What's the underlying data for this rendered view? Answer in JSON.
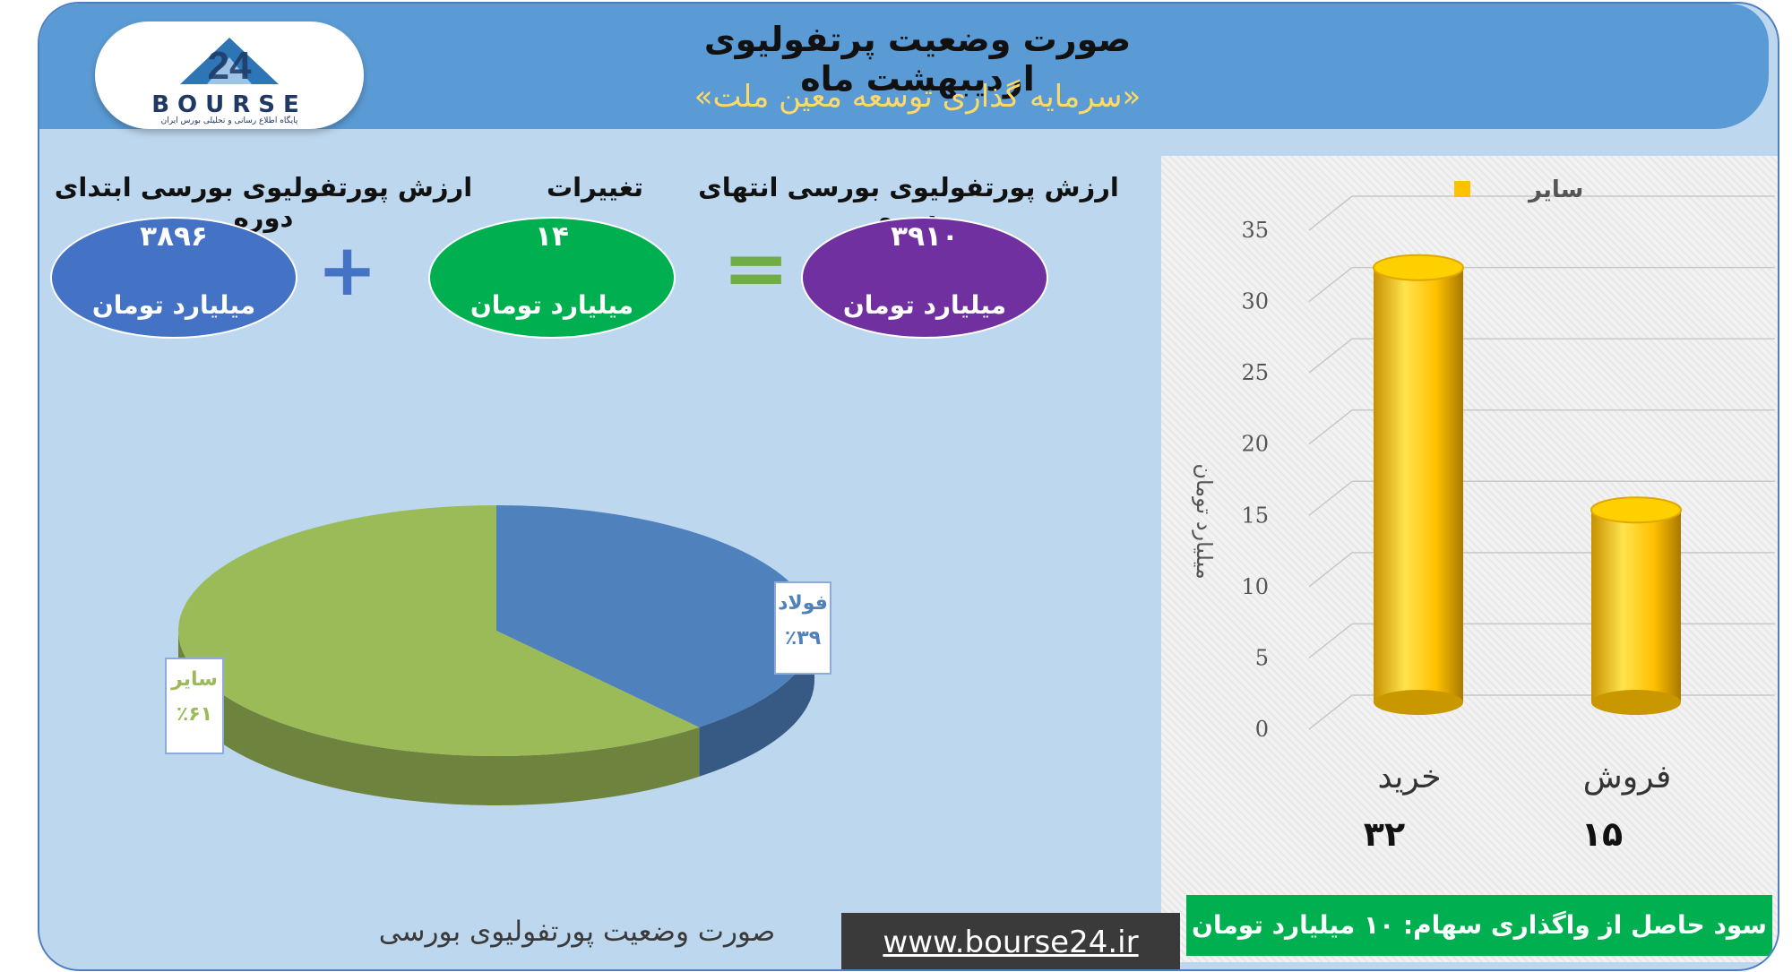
{
  "header": {
    "title": "صورت وضعیت پرتفولیوی اردیبهشت ماه",
    "subtitle": "«سرمایه گذاری توسعه معین ملت»",
    "logo_text": "BOURSE",
    "logo_number": "24",
    "logo_sub": "پایگاه اطلاع رسانی و تحلیلی بورس ایران"
  },
  "summary": {
    "start_label": "ارزش پورتفولیوی بورسی ابتدای دوره",
    "start_value": "۳۸۹۶",
    "change_label": "تغییرات",
    "change_value": "۱۴",
    "end_label": "ارزش پورتفولیوی بورسی انتهای دوره",
    "end_value": "۳۹۱۰",
    "unit": "میلیارد تومان",
    "plus_sign": "+",
    "equals_sign": "=",
    "colors": {
      "start": "#4472c4",
      "change": "#00b050",
      "end": "#7030a0"
    }
  },
  "chart_data": [
    {
      "type": "pie",
      "slices": [
        {
          "label": "فولاد",
          "percent_text": "٪۳۹",
          "value": 39,
          "color": "#4f81bd"
        },
        {
          "label": "سایر",
          "percent_text": "٪۶۱",
          "value": 61,
          "color": "#9bbb59"
        }
      ]
    },
    {
      "type": "bar",
      "categories": [
        "خرید",
        "فروش"
      ],
      "series": [
        {
          "name": "سایر",
          "values": [
            32,
            15
          ],
          "color": "#ffc000"
        }
      ],
      "value_labels": [
        "۳۲",
        "۱۵"
      ],
      "ylabel": "میلیارد تومان",
      "ylim": [
        0,
        35
      ],
      "yticks": [
        "0",
        "5",
        "10",
        "15",
        "20",
        "25",
        "30",
        "35"
      ],
      "legend": "top",
      "grid": true
    }
  ],
  "footer": {
    "profit_text": "سود حاصل از واگذاری سهام: ۱۰ میلیارد تومان",
    "url": "www.bourse24.ir",
    "caption": "صورت وضعیت پورتفولیوی بورسی"
  }
}
